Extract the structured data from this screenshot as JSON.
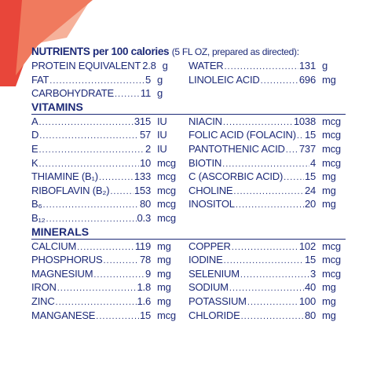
{
  "colors": {
    "text": "#1d2a78",
    "accent_red": "#e8463a",
    "accent_peach": "#f4a48a"
  },
  "header": {
    "title": "NUTRIENTS per 100 calories",
    "subtitle": "(5 FL OZ, prepared as directed):"
  },
  "general": {
    "left": [
      {
        "name": "PROTEIN EQUIVALENT",
        "value": "2.8",
        "unit": "g"
      },
      {
        "name": "FAT",
        "value": "5",
        "unit": "g"
      },
      {
        "name": "CARBOHYDRATE",
        "value": "11",
        "unit": "g"
      }
    ],
    "right": [
      {
        "name": "WATER",
        "value": "131",
        "unit": "g"
      },
      {
        "name": "LINOLEIC ACID",
        "value": "696",
        "unit": "mg"
      }
    ]
  },
  "vitamins": {
    "heading": "VITAMINS",
    "left": [
      {
        "name": "A",
        "value": "315",
        "unit": "IU"
      },
      {
        "name": "D",
        "value": "57",
        "unit": "IU"
      },
      {
        "name": "E",
        "value": "2",
        "unit": "IU"
      },
      {
        "name": "K",
        "value": "10",
        "unit": "mcg"
      },
      {
        "name": "THIAMINE (B₁)",
        "value": "133",
        "unit": "mcg"
      },
      {
        "name": "RIBOFLAVIN (B₂)",
        "value": "153",
        "unit": "mcg"
      },
      {
        "name": "B₆",
        "value": "80",
        "unit": "mcg"
      },
      {
        "name": "B₁₂",
        "value": "0.3",
        "unit": "mcg"
      }
    ],
    "right": [
      {
        "name": "NIACIN",
        "value": "1038",
        "unit": "mcg"
      },
      {
        "name": "FOLIC ACID (FOLACIN)",
        "value": "15",
        "unit": "mcg"
      },
      {
        "name": "PANTOTHENIC ACID",
        "value": "737",
        "unit": "mcg"
      },
      {
        "name": "BIOTIN",
        "value": "4",
        "unit": "mcg"
      },
      {
        "name": "C (ASCORBIC ACID)",
        "value": "15",
        "unit": "mg"
      },
      {
        "name": "CHOLINE",
        "value": "24",
        "unit": "mg"
      },
      {
        "name": "INOSITOL",
        "value": "20",
        "unit": "mg"
      }
    ]
  },
  "minerals": {
    "heading": "MINERALS",
    "left": [
      {
        "name": "CALCIUM",
        "value": "119",
        "unit": "mg"
      },
      {
        "name": "PHOSPHORUS",
        "value": "78",
        "unit": "mg"
      },
      {
        "name": "MAGNESIUM",
        "value": "9",
        "unit": "mg"
      },
      {
        "name": "IRON",
        "value": "1.8",
        "unit": "mg"
      },
      {
        "name": "ZINC",
        "value": "1.6",
        "unit": "mg"
      },
      {
        "name": "MANGANESE",
        "value": "15",
        "unit": "mcg"
      }
    ],
    "right": [
      {
        "name": "COPPER",
        "value": "102",
        "unit": "mcg"
      },
      {
        "name": "IODINE",
        "value": "15",
        "unit": "mcg"
      },
      {
        "name": "SELENIUM",
        "value": "3",
        "unit": "mcg"
      },
      {
        "name": "SODIUM",
        "value": "40",
        "unit": "mg"
      },
      {
        "name": "POTASSIUM",
        "value": "100",
        "unit": "mg"
      },
      {
        "name": "CHLORIDE",
        "value": "80",
        "unit": "mg"
      }
    ]
  }
}
